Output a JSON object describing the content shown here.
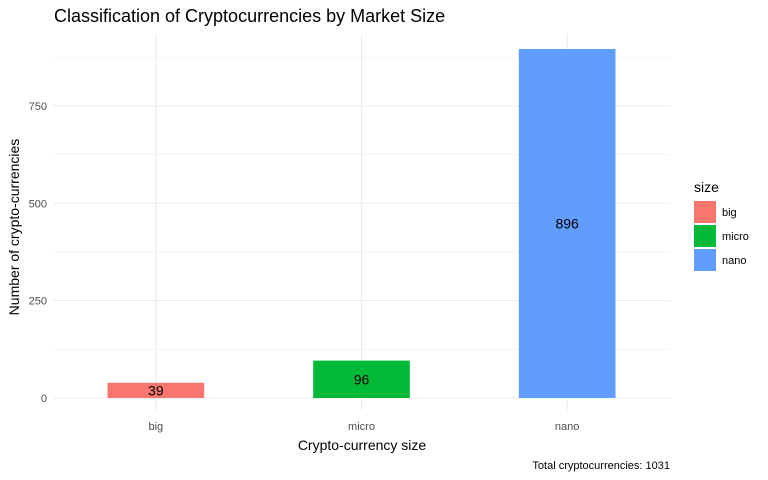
{
  "chart_data": {
    "type": "bar",
    "title": "Classification of Cryptocurrencies by Market Size",
    "xlabel": "Crypto-currency size",
    "ylabel": "Number of crypto-currencies",
    "categories": [
      "big",
      "micro",
      "nano"
    ],
    "values": [
      39,
      96,
      896
    ],
    "data_labels": [
      "39",
      "96",
      "896"
    ],
    "colors": [
      "#F8766D",
      "#00BA38",
      "#619CFF"
    ],
    "ylim": [
      0,
      940
    ],
    "yticks": [
      0,
      250,
      500,
      750
    ],
    "ytick_labels": [
      "0",
      "250",
      "500",
      "750"
    ],
    "legend": {
      "title": "size",
      "position": "right",
      "entries": [
        "big",
        "micro",
        "nano"
      ]
    },
    "caption": "Total cryptocurrencies: 1031",
    "grid": true
  }
}
